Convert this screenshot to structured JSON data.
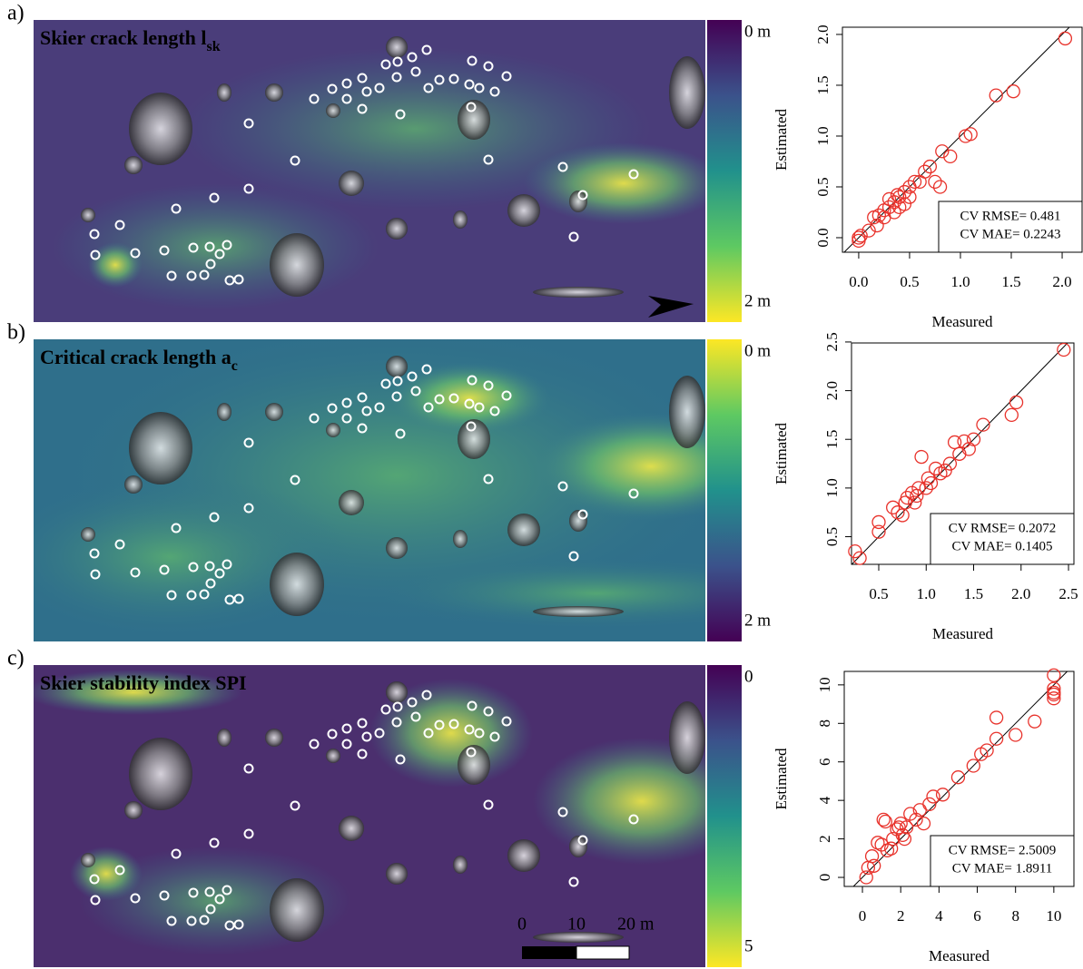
{
  "panels": [
    {
      "letter": "a)",
      "map_title": "Skier crack length l",
      "map_title_sub": "sk",
      "colorbar_labels": [
        "0 m",
        "2 m"
      ]
    },
    {
      "letter": "b)",
      "map_title": "Critical crack length a",
      "map_title_sub": "c",
      "colorbar_labels": [
        "0 m",
        "2 m"
      ]
    },
    {
      "letter": "c)",
      "map_title": "Skier stability index SPI",
      "colorbar_labels": [
        "0",
        "5"
      ]
    }
  ],
  "scale_bar": {
    "labels": [
      "0",
      "10",
      "20 m"
    ]
  },
  "chart_data": [
    {
      "type": "scatter",
      "x_label": "Measured",
      "y_label": "Estimated",
      "color": "#e8322b",
      "xlim": [
        -0.16,
        2.196
      ],
      "ylim": [
        -0.143,
        2.071
      ],
      "xticks": [
        {
          "value": 0,
          "label": "0.0"
        },
        {
          "value": 0.5,
          "label": "0.5"
        },
        {
          "value": 1,
          "label": "1.0"
        },
        {
          "value": 1.5,
          "label": "1.5"
        },
        {
          "value": 2,
          "label": "2.0"
        }
      ],
      "yticks": [
        {
          "value": 0,
          "label": "0.0"
        },
        {
          "value": 0.5,
          "label": "0.5"
        },
        {
          "value": 1,
          "label": "1.0"
        },
        {
          "value": 1.5,
          "label": "1.5"
        },
        {
          "value": 2,
          "label": "2.0"
        }
      ],
      "annotations": [
        "CV RMSE= 0.481",
        "CV MAE= 0.2243"
      ],
      "x": [
        0,
        0,
        0.02,
        0.1,
        0.15,
        0.2,
        0.18,
        0.25,
        0.3,
        0.35,
        0.4,
        0.4,
        0.45,
        0.5,
        0.45,
        0.55,
        0.6,
        0.65,
        0.7,
        0.75,
        0.8,
        0.82,
        0.9,
        1.05,
        1.1,
        1.35,
        1.52,
        2.03,
        0.3,
        0.38,
        0.5,
        0.25,
        0.35
      ],
      "values": [
        0,
        -0.03,
        0.02,
        0.07,
        0.2,
        0.22,
        0.12,
        0.2,
        0.3,
        0.35,
        0.3,
        0.4,
        0.45,
        0.4,
        0.33,
        0.55,
        0.55,
        0.65,
        0.7,
        0.55,
        0.5,
        0.85,
        0.8,
        1.0,
        1.02,
        1.4,
        1.44,
        1.96,
        0.38,
        0.42,
        0.5,
        0.27,
        0.25
      ]
    },
    {
      "type": "scatter",
      "x_label": "Measured",
      "y_label": "Estimated",
      "color": "#e8322b",
      "xlim": [
        0.213,
        2.557
      ],
      "ylim": [
        0.216,
        2.49
      ],
      "xticks": [
        0.5,
        {
          "value": 1,
          "label": "1.0"
        },
        1.5,
        {
          "value": 2,
          "label": "2.0"
        },
        2.5
      ],
      "yticks": [
        0.5,
        {
          "value": 1,
          "label": "1.0"
        },
        1.5,
        {
          "value": 2,
          "label": "2.0"
        },
        2.5
      ],
      "annotations": [
        "CV RMSE= 0.2072",
        "CV MAE= 0.1405"
      ],
      "x": [
        0.25,
        0.3,
        0.5,
        0.5,
        0.65,
        0.7,
        0.75,
        0.78,
        0.8,
        0.85,
        0.9,
        0.92,
        0.95,
        1.0,
        1.02,
        1.1,
        1.15,
        1.2,
        1.25,
        1.3,
        1.35,
        1.4,
        1.45,
        1.5,
        1.6,
        1.9,
        1.95,
        2.45,
        0.88,
        1.05
      ],
      "values": [
        0.35,
        0.28,
        0.55,
        0.65,
        0.8,
        0.75,
        0.72,
        0.85,
        0.9,
        0.95,
        0.92,
        1.0,
        1.32,
        1.0,
        1.1,
        1.2,
        1.15,
        1.18,
        1.25,
        1.47,
        1.35,
        1.48,
        1.4,
        1.5,
        1.65,
        1.75,
        1.88,
        2.42,
        0.85,
        1.05
      ]
    },
    {
      "type": "scatter",
      "x_label": "Measured",
      "y_label": "Estimated",
      "color": "#e8322b",
      "xlim": [
        -0.95,
        11.05
      ],
      "ylim": [
        -0.47,
        10.7
      ],
      "xticks": [
        0,
        2,
        4,
        6,
        8,
        10
      ],
      "yticks": [
        0,
        2,
        4,
        6,
        8,
        10
      ],
      "annotations": [
        "CV RMSE= 2.5009",
        "CV MAE= 1.8911"
      ],
      "x": [
        0.2,
        0.3,
        0.5,
        0.6,
        0.8,
        1,
        1.1,
        1.2,
        1.3,
        1.5,
        1.6,
        1.8,
        2,
        2.1,
        2.3,
        2.5,
        2.8,
        3,
        3.2,
        3.5,
        3.7,
        4.2,
        5,
        5.8,
        6.2,
        6.5,
        7,
        7,
        8,
        9,
        10,
        10,
        10,
        10,
        10,
        2.2,
        1.9
      ],
      "values": [
        0,
        0.5,
        1.1,
        0.6,
        1.8,
        1.7,
        3,
        2.9,
        1.4,
        1.5,
        2,
        2.5,
        2.8,
        2.2,
        2.6,
        3.3,
        3,
        3.5,
        2.8,
        3.8,
        4.2,
        4.3,
        5.2,
        5.8,
        6.4,
        6.6,
        8.3,
        7.2,
        7.4,
        8.1,
        10.5,
        9.8,
        9.5,
        9.3,
        9.6,
        2.0,
        2.6
      ]
    }
  ]
}
